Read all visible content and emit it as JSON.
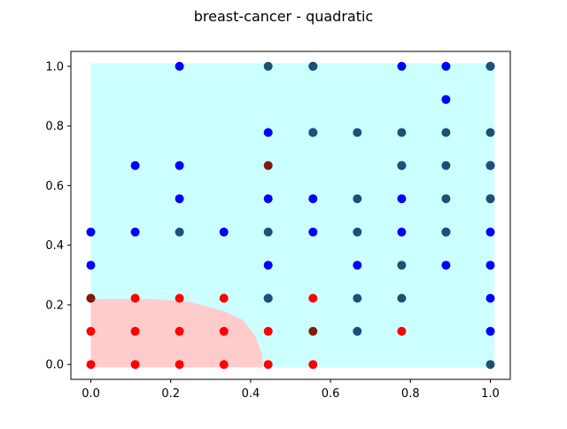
{
  "chart_data": {
    "type": "scatter",
    "title": "breast-cancer - quadratic",
    "xlabel": "",
    "ylabel": "",
    "xlim": [
      -0.05,
      1.05
    ],
    "ylim": [
      -0.05,
      1.05
    ],
    "xticks": [
      "0.0",
      "0.2",
      "0.4",
      "0.6",
      "0.8",
      "1.0"
    ],
    "yticks": [
      "0.0",
      "0.2",
      "0.4",
      "0.6",
      "0.8",
      "1.0"
    ],
    "grid": false,
    "legend": "none",
    "background_regions": [
      {
        "color": "#ccffff",
        "polygon": [
          [
            0,
            0.22
          ],
          [
            0,
            1.01
          ],
          [
            1.01,
            1.01
          ],
          [
            1.01,
            -0.01
          ],
          [
            0.43,
            -0.01
          ],
          [
            0.43,
            0.03
          ],
          [
            0.41,
            0.1
          ],
          [
            0.38,
            0.15
          ],
          [
            0.33,
            0.18
          ],
          [
            0.25,
            0.21
          ],
          [
            0.15,
            0.22
          ]
        ]
      },
      {
        "color": "#ffcccc",
        "polygon": [
          [
            0,
            -0.01
          ],
          [
            0,
            0.22
          ],
          [
            0.15,
            0.22
          ],
          [
            0.25,
            0.21
          ],
          [
            0.33,
            0.18
          ],
          [
            0.38,
            0.15
          ],
          [
            0.41,
            0.1
          ],
          [
            0.43,
            0.03
          ],
          [
            0.43,
            -0.01
          ]
        ]
      }
    ],
    "series": [
      {
        "color": "#0000ff",
        "points": [
          [
            0.222,
            1.0
          ],
          [
            0.556,
            1.0
          ],
          [
            0.778,
            1.0
          ],
          [
            0.889,
            1.0
          ],
          [
            1.0,
            1.0
          ],
          [
            0.889,
            0.889
          ],
          [
            0.444,
            0.778
          ],
          [
            0.556,
            0.778
          ],
          [
            0.111,
            0.667
          ],
          [
            0.222,
            0.667
          ],
          [
            0.778,
            0.667
          ],
          [
            1.0,
            0.667
          ],
          [
            0.222,
            0.556
          ],
          [
            0.444,
            0.556
          ],
          [
            0.556,
            0.556
          ],
          [
            0.778,
            0.556
          ],
          [
            1.0,
            0.556
          ],
          [
            0.0,
            0.444
          ],
          [
            0.111,
            0.444
          ],
          [
            0.333,
            0.444
          ],
          [
            0.556,
            0.444
          ],
          [
            0.778,
            0.444
          ],
          [
            0.889,
            0.444
          ],
          [
            1.0,
            0.444
          ],
          [
            0.0,
            0.333
          ],
          [
            0.444,
            0.333
          ],
          [
            0.667,
            0.333
          ],
          [
            0.889,
            0.333
          ],
          [
            1.0,
            0.333
          ],
          [
            0.444,
            0.222
          ],
          [
            1.0,
            0.222
          ],
          [
            1.0,
            0.111
          ]
        ]
      },
      {
        "color": "#1a5276",
        "points": [
          [
            0.444,
            1.0
          ],
          [
            0.556,
            1.0
          ],
          [
            1.0,
            1.0
          ],
          [
            0.556,
            0.778
          ],
          [
            0.667,
            0.778
          ],
          [
            0.778,
            0.778
          ],
          [
            0.889,
            0.778
          ],
          [
            1.0,
            0.778
          ],
          [
            0.778,
            0.667
          ],
          [
            0.889,
            0.667
          ],
          [
            1.0,
            0.667
          ],
          [
            0.667,
            0.556
          ],
          [
            0.889,
            0.556
          ],
          [
            1.0,
            0.556
          ],
          [
            0.222,
            0.444
          ],
          [
            0.444,
            0.444
          ],
          [
            0.667,
            0.444
          ],
          [
            0.889,
            0.444
          ],
          [
            0.778,
            0.333
          ],
          [
            0.444,
            0.222
          ],
          [
            0.667,
            0.222
          ],
          [
            0.778,
            0.222
          ],
          [
            0.667,
            0.111
          ],
          [
            1.0,
            0.0
          ]
        ]
      },
      {
        "color": "#ff0000",
        "points": [
          [
            0.0,
            0.222
          ],
          [
            0.111,
            0.222
          ],
          [
            0.222,
            0.222
          ],
          [
            0.333,
            0.222
          ],
          [
            0.556,
            0.222
          ],
          [
            0.0,
            0.111
          ],
          [
            0.111,
            0.111
          ],
          [
            0.222,
            0.111
          ],
          [
            0.333,
            0.111
          ],
          [
            0.444,
            0.111
          ],
          [
            0.778,
            0.111
          ],
          [
            0.0,
            0.0
          ],
          [
            0.111,
            0.0
          ],
          [
            0.222,
            0.0
          ],
          [
            0.333,
            0.0
          ],
          [
            0.444,
            0.0
          ],
          [
            0.556,
            0.0
          ]
        ]
      },
      {
        "color": "#7b1c0c",
        "points": [
          [
            0.444,
            0.667
          ],
          [
            0.0,
            0.222
          ],
          [
            0.556,
            0.111
          ]
        ]
      }
    ]
  }
}
